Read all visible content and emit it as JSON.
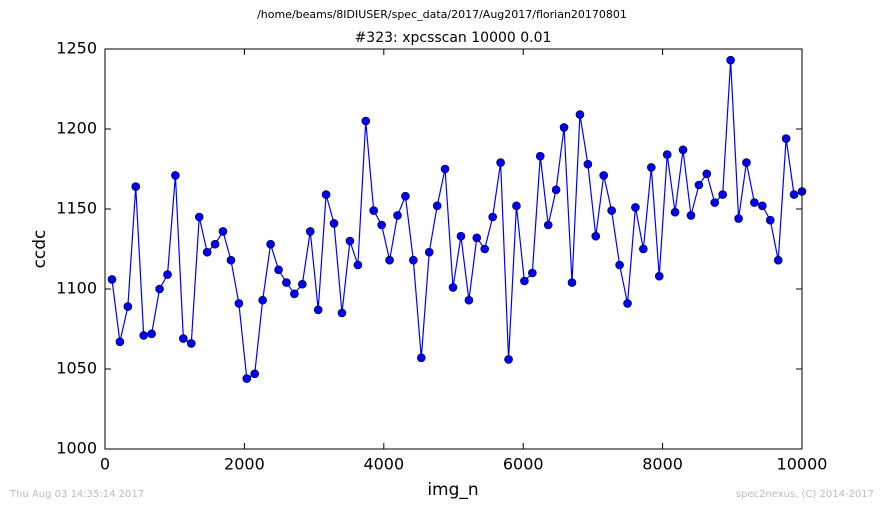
{
  "chart_data": {
    "type": "line",
    "suptitle": "/home/beams/8IDIUSER/spec_data/2017/Aug2017/florian20170801",
    "title": "#323: xpcsscan 10000 0.01",
    "x_label": "img_n",
    "y_label": "ccdc",
    "annotations": [
      "Thu Aug 03 14:35:14 2017",
      "spec2nexus, (C) 2014-2017"
    ],
    "x": [
      100,
      214,
      328,
      441,
      555,
      669,
      783,
      897,
      1010,
      1124,
      1238,
      1352,
      1466,
      1579,
      1693,
      1807,
      1921,
      2034,
      2148,
      2262,
      2376,
      2490,
      2603,
      2717,
      2831,
      2945,
      3059,
      3172,
      3286,
      3400,
      3514,
      3628,
      3741,
      3855,
      3969,
      4083,
      4197,
      4310,
      4424,
      4538,
      4652,
      4766,
      4879,
      4993,
      5107,
      5221,
      5334,
      5448,
      5562,
      5676,
      5790,
      5903,
      6017,
      6131,
      6245,
      6359,
      6472,
      6586,
      6700,
      6814,
      6928,
      7041,
      7155,
      7269,
      7383,
      7497,
      7610,
      7724,
      7838,
      7952,
      8066,
      8179,
      8293,
      8407,
      8521,
      8634,
      8748,
      8862,
      8976,
      9090,
      9203,
      9317,
      9431,
      9545,
      9659,
      9772,
      9886,
      10000
    ],
    "series": [
      {
        "name": "ccdc",
        "color": "#0000ff",
        "values": [
          1106,
          1067,
          1089,
          1164,
          1071,
          1072,
          1100,
          1109,
          1171,
          1069,
          1066,
          1145,
          1123,
          1128,
          1136,
          1118,
          1091,
          1044,
          1047,
          1093,
          1128,
          1112,
          1104,
          1097,
          1103,
          1136,
          1087,
          1159,
          1141,
          1085,
          1130,
          1115,
          1205,
          1149,
          1140,
          1118,
          1146,
          1158,
          1118,
          1057,
          1123,
          1152,
          1175,
          1101,
          1133,
          1093,
          1132,
          1125,
          1145,
          1179,
          1056,
          1152,
          1105,
          1110,
          1183,
          1140,
          1162,
          1201,
          1104,
          1209,
          1178,
          1133,
          1171,
          1149,
          1115,
          1091,
          1151,
          1125,
          1176,
          1108,
          1184,
          1148,
          1187,
          1146,
          1165,
          1172,
          1154,
          1159,
          1243,
          1144,
          1179,
          1154,
          1152,
          1143,
          1118,
          1194,
          1159,
          1161
        ]
      }
    ],
    "xlim": [
      0,
      10000
    ],
    "xticks": [
      0,
      2000,
      4000,
      6000,
      8000,
      10000
    ],
    "ylim": [
      1000,
      1250
    ],
    "yticks": [
      1000,
      1050,
      1100,
      1150,
      1200,
      1250
    ],
    "grid": false
  }
}
